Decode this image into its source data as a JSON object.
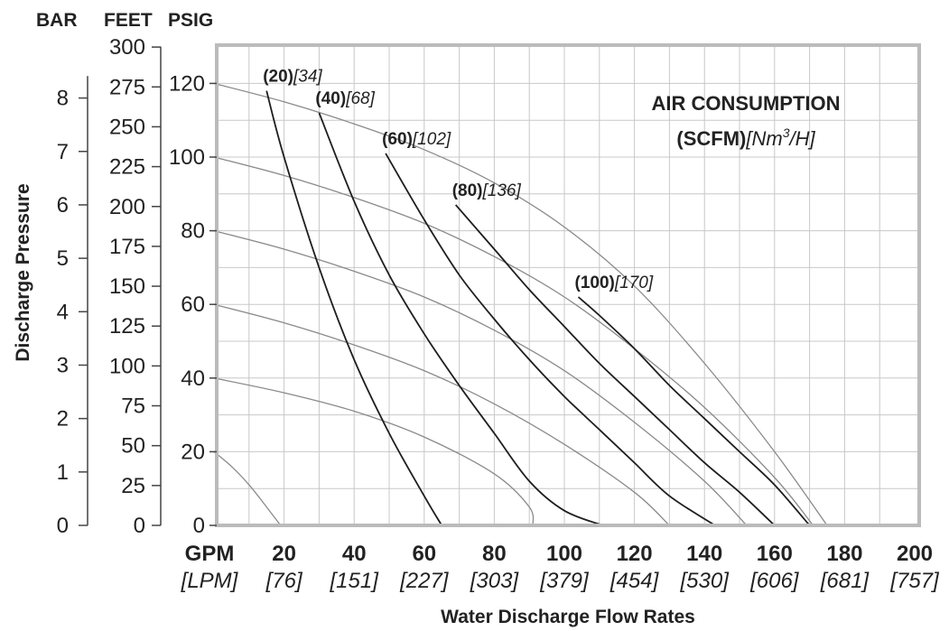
{
  "chart_data": {
    "type": "line",
    "xlabel": "Water Discharge Flow Rates",
    "x_unit_primary": "GPM",
    "x_unit_secondary": "[LPM]",
    "xlim": [
      0,
      200
    ],
    "x_ticks_gpm": [
      "20",
      "40",
      "60",
      "80",
      "100",
      "120",
      "140",
      "160",
      "180",
      "200"
    ],
    "x_ticks_lpm": [
      "[76]",
      "[151]",
      "[227]",
      "[303]",
      "[379]",
      "[454]",
      "[530]",
      "[606]",
      "[681]",
      "[757]"
    ],
    "ylabel": "Discharge Pressure",
    "ylim": [
      0,
      130
    ],
    "y_unit_headers": [
      "BAR",
      "FEET",
      "PSIG"
    ],
    "y_ticks_psig": [
      "0",
      "20",
      "40",
      "60",
      "80",
      "100",
      "120"
    ],
    "y_ticks_feet": [
      "0",
      "25",
      "50",
      "75",
      "100",
      "125",
      "150",
      "175",
      "200",
      "225",
      "250",
      "275",
      "300"
    ],
    "y_ticks_bar": [
      "0",
      "1",
      "2",
      "3",
      "4",
      "5",
      "6",
      "7",
      "8"
    ],
    "grid": true,
    "legend": {
      "title": "AIR CONSUMPTION",
      "units_bold": "(SCFM)",
      "units_italic": "[Nm",
      "units_sup": "3",
      "units_tail": "/H]",
      "placement": "top-right"
    },
    "air_consumption_curves": [
      {
        "label": "(20)",
        "label_metric": "[34]",
        "points": [
          [
            15,
            118
          ],
          [
            20,
            100
          ],
          [
            30,
            70
          ],
          [
            40,
            45
          ],
          [
            50,
            25
          ],
          [
            60,
            8
          ],
          [
            65,
            0
          ]
        ]
      },
      {
        "label": "(40)",
        "label_metric": "[68]",
        "points": [
          [
            30,
            112
          ],
          [
            40,
            88
          ],
          [
            50,
            68
          ],
          [
            60,
            52
          ],
          [
            70,
            38
          ],
          [
            80,
            25
          ],
          [
            90,
            12
          ],
          [
            100,
            4
          ],
          [
            111,
            0
          ]
        ]
      },
      {
        "label": "(60)",
        "label_metric": "[102]",
        "points": [
          [
            49,
            101
          ],
          [
            60,
            83
          ],
          [
            70,
            68
          ],
          [
            80,
            56
          ],
          [
            90,
            45
          ],
          [
            100,
            35
          ],
          [
            110,
            26
          ],
          [
            120,
            17
          ],
          [
            130,
            8
          ],
          [
            143,
            0
          ]
        ]
      },
      {
        "label": "(80)",
        "label_metric": "[136]",
        "points": [
          [
            69,
            87
          ],
          [
            80,
            75
          ],
          [
            90,
            64
          ],
          [
            100,
            54
          ],
          [
            110,
            44
          ],
          [
            120,
            35
          ],
          [
            130,
            26
          ],
          [
            140,
            17
          ],
          [
            150,
            9
          ],
          [
            160,
            0
          ]
        ]
      },
      {
        "label": "(100)",
        "label_metric": "[170]",
        "points": [
          [
            104,
            62
          ],
          [
            110,
            57
          ],
          [
            120,
            48
          ],
          [
            130,
            38
          ],
          [
            140,
            29
          ],
          [
            150,
            20
          ],
          [
            160,
            11
          ],
          [
            170,
            0
          ]
        ]
      }
    ],
    "pressure_curves": [
      {
        "points": [
          [
            0,
            120
          ],
          [
            20,
            115
          ],
          [
            40,
            109
          ],
          [
            60,
            102
          ],
          [
            80,
            93
          ],
          [
            100,
            81
          ],
          [
            120,
            65
          ],
          [
            140,
            44
          ],
          [
            160,
            20
          ],
          [
            175,
            0
          ]
        ]
      },
      {
        "points": [
          [
            0,
            100
          ],
          [
            20,
            95
          ],
          [
            40,
            89
          ],
          [
            60,
            82
          ],
          [
            80,
            73
          ],
          [
            100,
            62
          ],
          [
            120,
            48
          ],
          [
            140,
            32
          ],
          [
            160,
            13
          ],
          [
            171,
            0
          ]
        ]
      },
      {
        "points": [
          [
            0,
            80
          ],
          [
            20,
            75
          ],
          [
            40,
            69
          ],
          [
            60,
            62
          ],
          [
            80,
            53
          ],
          [
            100,
            42
          ],
          [
            120,
            28
          ],
          [
            140,
            12
          ],
          [
            152,
            0
          ]
        ]
      },
      {
        "points": [
          [
            0,
            60
          ],
          [
            20,
            55
          ],
          [
            40,
            49
          ],
          [
            60,
            42
          ],
          [
            80,
            33
          ],
          [
            100,
            22
          ],
          [
            120,
            9
          ],
          [
            130,
            0
          ]
        ]
      },
      {
        "points": [
          [
            0,
            40
          ],
          [
            20,
            36
          ],
          [
            40,
            31
          ],
          [
            60,
            24
          ],
          [
            80,
            14
          ],
          [
            90,
            5
          ],
          [
            91,
            0
          ]
        ]
      },
      {
        "points": [
          [
            0,
            20
          ],
          [
            5,
            16
          ],
          [
            10,
            11
          ],
          [
            15,
            5
          ],
          [
            19,
            0
          ]
        ]
      }
    ]
  }
}
